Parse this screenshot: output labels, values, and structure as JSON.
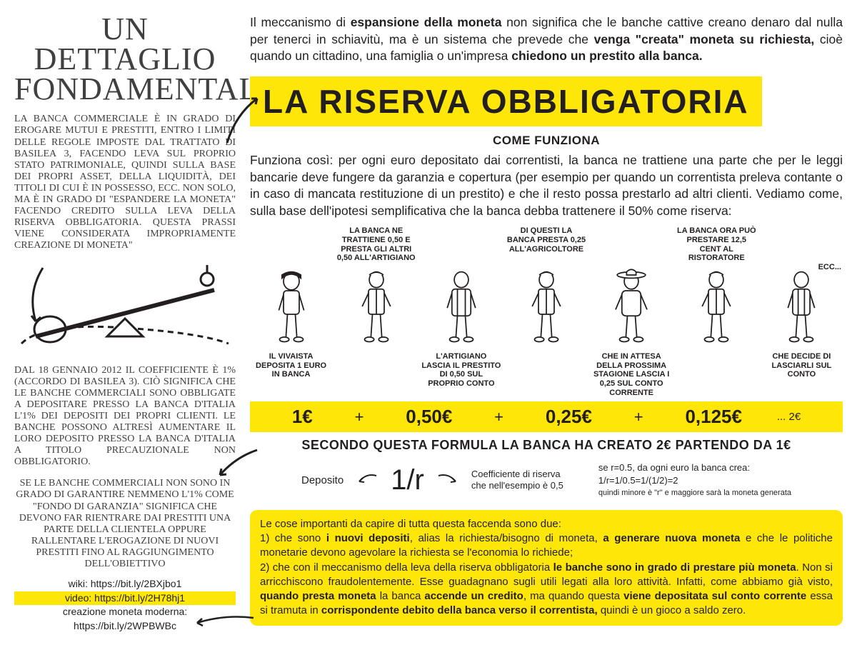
{
  "colors": {
    "highlight": "#ffe609",
    "text": "#231f20",
    "bg": "#ffffff"
  },
  "left": {
    "title": "UN DETTAGLIO FONDAMENTALE",
    "para1": "La banca commerciale è in grado di erogare mutui e prestiti, entro i limiti delle regole imposte dal trattato di Basilea 3, facendo leva sul proprio stato patrimoniale, quindi sulla base dei propri asset, della liquidità, dei titoli di cui è in possesso, ecc. Non solo, ma è in grado di \"espandere la moneta\" facendo credito sulla leva della riserva obbligatoria. Questa prassi viene considerata impropriamente creazione di moneta\"",
    "para2": "Dal 18 gennaio 2012 il coefficiente è 1% (accordo di Basilea 3). Ciò significa che le banche commerciali sono obbligate a depositare presso la Banca d'Italia l'1% dei depositi dei propri clienti. Le banche possono altresì aumentare il loro deposito presso la Banca d'Italia a titolo precauzionale non obbligatorio.",
    "para3": "Se le banche commerciali non sono in grado di garantire nemmeno l'1% come \"fondo di garanzia\" significa che devono far rientrare dai prestiti una parte della clientela oppure rallentare l'erogazione di nuovi prestiti fino al raggiungimento dell'obiettivo",
    "links": {
      "wiki": "wiki: https://bit.ly/2BXjbo1",
      "video": "video: https://bit.ly/2H78hj1",
      "creation_label": "creazione moneta moderna:",
      "creation_url": "https://bit.ly/2WPBWBc"
    }
  },
  "right": {
    "intro_html": "Il meccanismo di <b>espansione della moneta</b> non significa che le banche cattive creano denaro dal nulla per tenerci in schiavitù, ma è un sistema che prevede che <b>venga \"creata\" moneta su richiesta,</b> cioè quando un cittadino, una famiglia o un'impresa <b>chiedono un prestito alla banca.</b>",
    "big_title": "LA RISERVA  OBBLIGATORIA",
    "subhead": "COME FUNZIONA",
    "explain": "Funziona così: per ogni euro depositato dai correntisti, la banca ne trattiene una parte che per le leggi bancarie deve fungere da garanzia e copertura (per esempio per quando un correntista preleva contante o in caso di mancata restituzione di un prestito) e che il resto possa prestarlo ad altri clienti. Vediamo come, sulla base dell'ipotesi semplificativa che la banca debba trattenere il 50% come riserva:",
    "upper_caps": [
      "",
      "LA BANCA NE TRATTIENE 0,50 E PRESTA GLI ALTRI 0,50 ALL'ARTIGIANO",
      "",
      "DI QUESTI LA BANCA PRESTA 0,25 ALL'AGRICOLTORE",
      "",
      "LA BANCA ORA PUÒ PRESTARE 12,5 CENT AL RISTORATORE",
      ""
    ],
    "lower_caps": [
      "IL VIVAISTA DEPOSITA 1 EURO IN BANCA",
      "",
      "L'ARTIGIANO LASCIA IL PRESTITO DI 0,50 SUL PROPRIO CONTO",
      "",
      "CHE IN ATTESA DELLA PROSSIMA STAGIONE LASCIA I 0,25 SUL CONTO CORRENTE",
      "",
      "CHE DECIDE DI LASCIARLI SUL CONTO"
    ],
    "ecc": "ECC...",
    "math": {
      "v1": "1€",
      "v2": "0,50€",
      "v3": "0,25€",
      "v4": "0,125€",
      "tail": "... 2€",
      "plus": "+"
    },
    "formula_head": "SECONDO QUESTA FORMULA LA BANCA HA CREATO 2€ PARTENDO DA 1€",
    "formula": {
      "deposito": "Deposito",
      "one_over_r": "1/r",
      "coeff": "Coefficiente di riserva che nell'esempio è 0,5",
      "calc1": "se r=0.5, da ogni euro la banca crea:",
      "calc2": "1/r=1/0.5=1/(1/2)=2",
      "calc3": "quindi minore è \"r\" e maggiore sarà la moneta generata"
    },
    "summary_html": "Le cose importanti da capire di tutta questa faccenda sono due:<br>1) che sono <b>i nuovi depositi</b>, alias la richiesta/bisogno di moneta, <b>a generare nuova moneta</b> e che le politiche monetarie devono agevolare la richiesta se l'economia lo richiede;<br>2) che con il meccanismo della leva della riserva obbligatoria <b>le banche sono in grado di prestare più moneta</b>. Non si arricchiscono fraudolentemente. Esse guadagnano sugli utili legati alla loro attività. Infatti, come abbiamo già visto, <b>quando presta moneta</b> la banca <b>accende un credito</b>, ma quando questa <b>viene depositata sul conto corrente</b> essa si tramuta in <b>corrispondente debito della banca verso il correntista,</b> quindi è un gioco a saldo zero."
  }
}
